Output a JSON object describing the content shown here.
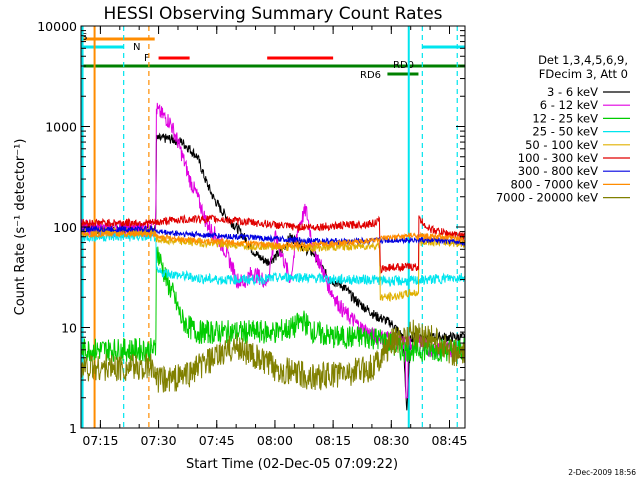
{
  "chart_data": {
    "type": "line",
    "title": "HESSI Observing Summary Count Rates",
    "xlabel": "Start Time (02-Dec-05 07:09:22)",
    "ylabel": "Count Rate (s⁻¹ detector⁻¹)",
    "y_scale": "log",
    "ylim": [
      1,
      10000
    ],
    "xlim_minutes": [
      430,
      529
    ],
    "x_ticks": [
      {
        "minute": 435,
        "label": "07:15"
      },
      {
        "minute": 450,
        "label": "07:30"
      },
      {
        "minute": 465,
        "label": "07:45"
      },
      {
        "minute": 480,
        "label": "08:00"
      },
      {
        "minute": 495,
        "label": "08:15"
      },
      {
        "minute": 510,
        "label": "08:30"
      },
      {
        "minute": 525,
        "label": "08:45"
      }
    ],
    "y_ticks": [
      {
        "value": 1,
        "label": "1"
      },
      {
        "value": 10,
        "label": "10"
      },
      {
        "value": 100,
        "label": "100"
      },
      {
        "value": 1000,
        "label": "1000"
      },
      {
        "value": 10000,
        "label": "10000"
      }
    ],
    "legend": {
      "placement": "right",
      "header": [
        "Det 1,3,4,5,6,9,",
        "FDecim 3, Att 0"
      ]
    },
    "series": [
      {
        "name": "3 - 6 keV",
        "color": "#000000",
        "x": [
          430,
          432,
          434,
          435,
          449.3,
          449.4,
          452,
          454,
          456,
          458,
          460,
          462,
          464,
          466,
          468,
          470,
          472,
          474,
          476,
          478,
          480,
          482,
          484,
          486,
          488,
          490,
          492,
          494,
          496,
          498,
          500,
          502,
          504,
          506,
          508,
          510,
          511,
          512,
          513,
          514,
          515,
          516,
          517,
          518,
          520,
          522,
          524,
          526,
          529
        ],
        "y": [
          100,
          100,
          90,
          95,
          95,
          750,
          760,
          740,
          700,
          600,
          500,
          300,
          200,
          150,
          120,
          100,
          80,
          60,
          50,
          45,
          50,
          60,
          80,
          70,
          60,
          55,
          40,
          30,
          28,
          25,
          20,
          17,
          15,
          13,
          12,
          11,
          10,
          9,
          8,
          1.5,
          8,
          8,
          8,
          8,
          8,
          8,
          8,
          8,
          8
        ]
      },
      {
        "name": "6 - 12 keV",
        "color": "#e000e0",
        "x": [
          430,
          432,
          434,
          435,
          449.3,
          449.4,
          451,
          453,
          455,
          457,
          458,
          460,
          462,
          463,
          465,
          467,
          469,
          470,
          472,
          474,
          476,
          478,
          480,
          482,
          484,
          486,
          488,
          490,
          492,
          494,
          496,
          498,
          500,
          502,
          504,
          506,
          508,
          510,
          512,
          514,
          516,
          518,
          520,
          522,
          524,
          526,
          529
        ],
        "y": [
          100,
          100,
          90,
          95,
          95,
          1500,
          1300,
          1100,
          700,
          400,
          300,
          200,
          120,
          100,
          80,
          60,
          40,
          30,
          28,
          35,
          32,
          28,
          80,
          50,
          30,
          100,
          150,
          60,
          40,
          25,
          18,
          14,
          12,
          10,
          9,
          8,
          8,
          8,
          7,
          7,
          7,
          7,
          6,
          6,
          6,
          6,
          6
        ],
        "spike_minute": 514,
        "spike_min": 2
      },
      {
        "name": "12 - 25 keV",
        "color": "#00cc00",
        "x": [
          430,
          432,
          434,
          435,
          449.3,
          449.4,
          451,
          452,
          454,
          456,
          458,
          460,
          462,
          465,
          470,
          475,
          480,
          485,
          487,
          490,
          495,
          500,
          505,
          510,
          512,
          515,
          520,
          525,
          529
        ],
        "y": [
          6,
          6,
          6,
          6,
          6,
          60,
          40,
          30,
          20,
          12,
          10,
          9,
          9,
          9,
          9,
          9,
          9,
          10,
          12,
          9,
          8,
          8,
          8,
          7,
          6,
          6,
          6,
          6,
          6
        ]
      },
      {
        "name": "25 - 50 keV",
        "color": "#00e5ee",
        "x": [
          430,
          432,
          434,
          435,
          449.3,
          449.4,
          452,
          455,
          458,
          460,
          465,
          470,
          475,
          480,
          485,
          490,
          495,
          500,
          505,
          510,
          515,
          520,
          525,
          529
        ],
        "y": [
          80,
          80,
          80,
          80,
          80,
          35,
          35,
          33,
          32,
          31,
          30,
          30,
          30,
          31,
          32,
          31,
          30,
          30,
          30,
          29,
          29,
          30,
          31,
          32
        ]
      },
      {
        "name": "50 - 100 keV",
        "color": "#e0b000",
        "x": [
          430,
          432,
          434,
          435,
          449.3,
          449.4,
          452,
          455,
          460,
          465,
          470,
          475,
          480,
          485,
          490,
          495,
          500,
          505,
          507,
          507.1,
          510,
          515,
          517,
          517.1,
          520,
          525,
          529
        ],
        "y": [
          90,
          90,
          90,
          90,
          90,
          75,
          73,
          72,
          70,
          68,
          66,
          65,
          64,
          62,
          62,
          63,
          64,
          65,
          66,
          20,
          20,
          22,
          22,
          70,
          72,
          70,
          68
        ]
      },
      {
        "name": "100 - 300 keV",
        "color": "#e00000",
        "x": [
          430,
          432,
          434,
          435,
          449.3,
          449.4,
          452,
          455,
          460,
          465,
          470,
          475,
          480,
          485,
          490,
          495,
          500,
          505,
          507,
          507.1,
          510,
          515,
          517,
          517.1,
          520,
          525,
          529
        ],
        "y": [
          110,
          110,
          110,
          110,
          110,
          110,
          115,
          118,
          120,
          120,
          115,
          110,
          105,
          100,
          100,
          102,
          105,
          108,
          115,
          38,
          40,
          40,
          40,
          120,
          95,
          85,
          80
        ]
      },
      {
        "name": "300 - 800 keV",
        "color": "#0000e0",
        "x": [
          430,
          432,
          434,
          435,
          449.3,
          449.4,
          452,
          455,
          460,
          465,
          470,
          475,
          480,
          485,
          490,
          495,
          500,
          505,
          510,
          515,
          520,
          525,
          529
        ],
        "y": [
          95,
          95,
          95,
          95,
          95,
          90,
          88,
          86,
          84,
          82,
          80,
          78,
          76,
          74,
          73,
          72,
          72,
          73,
          74,
          75,
          74,
          72,
          70
        ]
      },
      {
        "name": "800 - 7000 keV",
        "color": "#ff8c00",
        "x": [
          430,
          432,
          434,
          435,
          449.3,
          449.4,
          452,
          455,
          460,
          465,
          470,
          475,
          480,
          485,
          490,
          495,
          500,
          505,
          510,
          515,
          520,
          525,
          529
        ],
        "y": [
          85,
          85,
          85,
          85,
          85,
          80,
          78,
          76,
          74,
          72,
          70,
          68,
          66,
          66,
          67,
          68,
          70,
          74,
          78,
          82,
          80,
          78,
          75
        ]
      },
      {
        "name": "7000 - 20000 keV",
        "color": "#808000",
        "x": [
          430,
          432,
          434,
          435,
          449.3,
          449.4,
          452,
          455,
          458,
          460,
          465,
          468,
          470,
          472,
          475,
          480,
          485,
          490,
          495,
          500,
          505,
          510,
          515,
          520,
          525,
          529
        ],
        "y": [
          4,
          4,
          4,
          4,
          4,
          3,
          3,
          3.2,
          3.5,
          4,
          5,
          6,
          6.5,
          6,
          5,
          4,
          3.5,
          3.2,
          3.4,
          3.6,
          4,
          7,
          9,
          8,
          6,
          5
        ]
      }
    ],
    "flags": [
      {
        "label": "S",
        "color": "#ff8c00",
        "segments": [
          [
            430,
            449
          ]
        ]
      },
      {
        "label": "N",
        "color": "#00e5ee",
        "segments": [
          [
            430,
            441
          ],
          [
            518,
            529
          ]
        ]
      },
      {
        "label": "F",
        "color": "#ff0000",
        "segments": [
          [
            450,
            458
          ],
          [
            478,
            495
          ]
        ]
      },
      {
        "label": "RD0",
        "color": "#008000",
        "segments": [
          [
            430,
            529
          ]
        ]
      },
      {
        "label": "RD6",
        "color": "#008000",
        "segments": [
          [
            509,
            517
          ]
        ]
      }
    ],
    "markers": [
      {
        "minute": 430.4,
        "color": "#00e5ee",
        "style": "solid"
      },
      {
        "minute": 433.5,
        "color": "#ff8c00",
        "style": "solid"
      },
      {
        "minute": 441,
        "color": "#00e5ee",
        "style": "dashed"
      },
      {
        "minute": 447.5,
        "color": "#ff8c00",
        "style": "dashed"
      },
      {
        "minute": 514.5,
        "color": "#00e5ee",
        "style": "solid"
      },
      {
        "minute": 518,
        "color": "#00e5ee",
        "style": "dashed"
      },
      {
        "minute": 527,
        "color": "#00e5ee",
        "style": "dashed"
      }
    ],
    "footer": "2-Dec-2009 18:56"
  }
}
